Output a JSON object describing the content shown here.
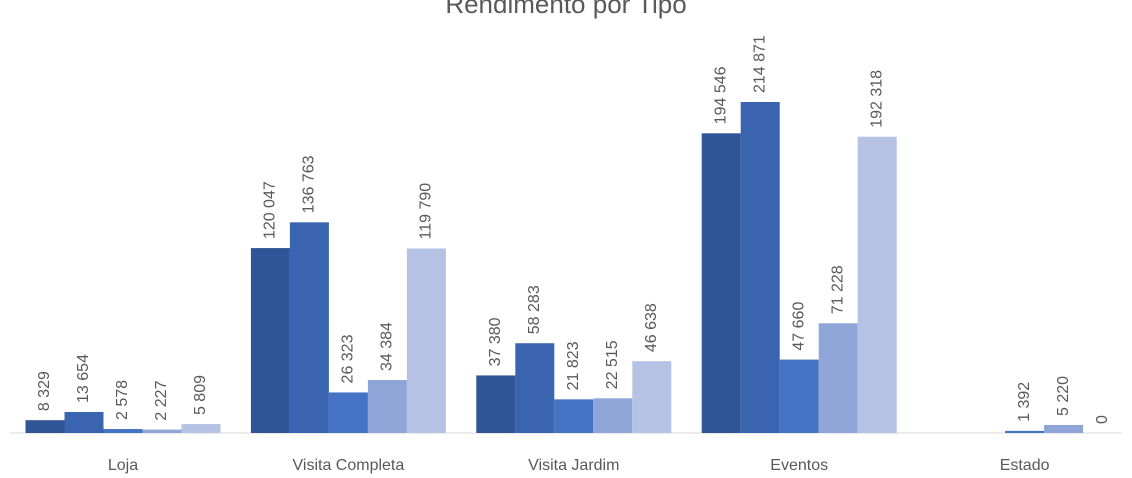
{
  "chart_data": {
    "type": "bar",
    "title": "Rendimento por Tipo",
    "categories": [
      "Loja",
      "Visita Completa",
      "Visita Jardim",
      "Eventos",
      "Estado"
    ],
    "series": [
      {
        "color": "#2f5597",
        "values": [
          8329,
          120047,
          37380,
          194546,
          null
        ],
        "value_labels": [
          "8 329",
          "120 047",
          "37 380",
          "194 546",
          null
        ]
      },
      {
        "color": "#3a64af",
        "values": [
          13654,
          136763,
          58283,
          214871,
          null
        ],
        "value_labels": [
          "13 654",
          "136 763",
          "58 283",
          "214 871",
          null
        ]
      },
      {
        "color": "#4472c4",
        "values": [
          2578,
          26323,
          21823,
          47660,
          1392
        ],
        "value_labels": [
          "2 578",
          "26 323",
          "21 823",
          "47 660",
          "1 392"
        ]
      },
      {
        "color": "#8fa5d8",
        "values": [
          2227,
          34384,
          22515,
          71228,
          5220
        ],
        "value_labels": [
          "2 227",
          "34 384",
          "22 515",
          "71 228",
          "5 220"
        ]
      },
      {
        "color": "#b6c2e4",
        "values": [
          5809,
          119790,
          46638,
          192318,
          0
        ],
        "value_labels": [
          "5 809",
          "119 790",
          "46 638",
          "192 318",
          "0"
        ]
      }
    ]
  }
}
